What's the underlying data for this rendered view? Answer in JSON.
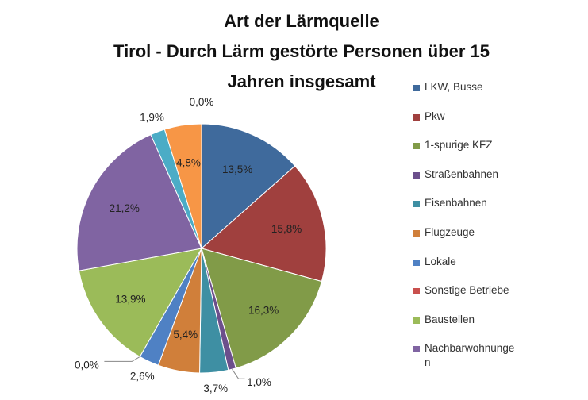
{
  "chart_data": {
    "type": "pie",
    "title": [
      "Art der Lärmquelle",
      "Tirol - Durch Lärm gestörte Personen über 15",
      "Jahren insgesamt"
    ],
    "legend_position": "right",
    "slices": [
      {
        "name": "LKW, Busse",
        "value": 13.5,
        "label": "13,5%",
        "color": "#3f6a9c"
      },
      {
        "name": "Pkw",
        "value": 15.8,
        "label": "15,8%",
        "color": "#a0403e"
      },
      {
        "name": "1-spurige KFZ",
        "value": 16.3,
        "label": "16,3%",
        "color": "#819b48"
      },
      {
        "name": "Straßenbahnen",
        "value": 1.0,
        "label": "1,0%",
        "color": "#6c4f8c"
      },
      {
        "name": "Eisenbahnen",
        "value": 3.7,
        "label": "3,7%",
        "color": "#3e8fa3"
      },
      {
        "name": "Flugzeuge",
        "value": 5.4,
        "label": "5,4%",
        "color": "#d07f3a"
      },
      {
        "name": "Lokale",
        "value": 2.6,
        "label": "2,6%",
        "color": "#4f81c4"
      },
      {
        "name": "Sonstige Betriebe",
        "value": 0.0,
        "label": "0,0%",
        "color": "#c9504d"
      },
      {
        "name": "Baustellen",
        "value": 13.9,
        "label": "13,9%",
        "color": "#9bbb59"
      },
      {
        "name": "Nachbarwohnungen",
        "value": 21.2,
        "label": "21,2%",
        "color": "#8064a2"
      },
      {
        "name": "",
        "value": 1.9,
        "label": "1,9%",
        "color": "#4bacc6"
      },
      {
        "name": "",
        "value": 4.8,
        "label": "4,8%",
        "color": "#f79646"
      },
      {
        "name": "",
        "value": 0.0,
        "label": "0,0%",
        "color": "#2c4d75"
      }
    ]
  }
}
